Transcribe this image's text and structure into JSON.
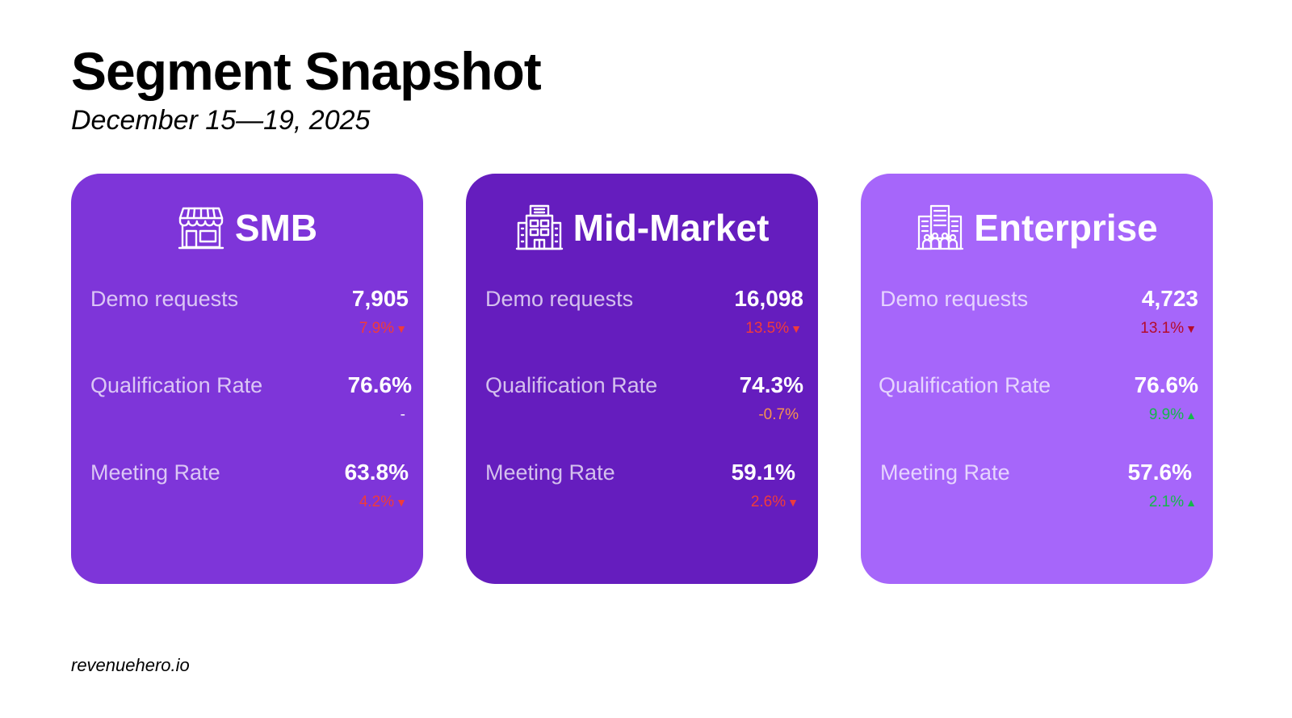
{
  "page": {
    "title": "Segment Snapshot",
    "subtitle": "December 15—19, 2025",
    "footer": "revenuehero.io"
  },
  "colors": {
    "smb_bg": "#7E35D9",
    "mid_bg": "#651DBE",
    "ent_bg": "#A666FA",
    "negative": "#F03B3B",
    "negative_dark": "#B50B2C",
    "positive": "#14B84A",
    "neutral_orange": "#F5944E"
  },
  "segments": [
    {
      "name": "SMB",
      "icon": "storefront-icon",
      "metrics": [
        {
          "label": "Demo requests",
          "value": "7,905",
          "change": "7.9%",
          "direction": "down"
        },
        {
          "label": "Qualification Rate",
          "value": "76.6%",
          "change": "-",
          "direction": "none"
        },
        {
          "label": "Meeting Rate",
          "value": "63.8%",
          "change": "4.2%",
          "direction": "down"
        }
      ]
    },
    {
      "name": "Mid-Market",
      "icon": "office-building-icon",
      "metrics": [
        {
          "label": "Demo requests",
          "value": "16,098",
          "change": "13.5%",
          "direction": "down"
        },
        {
          "label": "Qualification Rate",
          "value": "74.3%",
          "change": "-0.7%",
          "direction": "none"
        },
        {
          "label": "Meeting Rate",
          "value": "59.1%",
          "change": "2.6%",
          "direction": "down"
        }
      ]
    },
    {
      "name": "Enterprise",
      "icon": "corporate-building-icon",
      "metrics": [
        {
          "label": "Demo requests",
          "value": "4,723",
          "change": "13.1%",
          "direction": "down"
        },
        {
          "label": "Qualification Rate",
          "value": "76.6%",
          "change": "9.9%",
          "direction": "up"
        },
        {
          "label": "Meeting Rate",
          "value": "57.6%",
          "change": "2.1%",
          "direction": "up"
        }
      ]
    }
  ]
}
